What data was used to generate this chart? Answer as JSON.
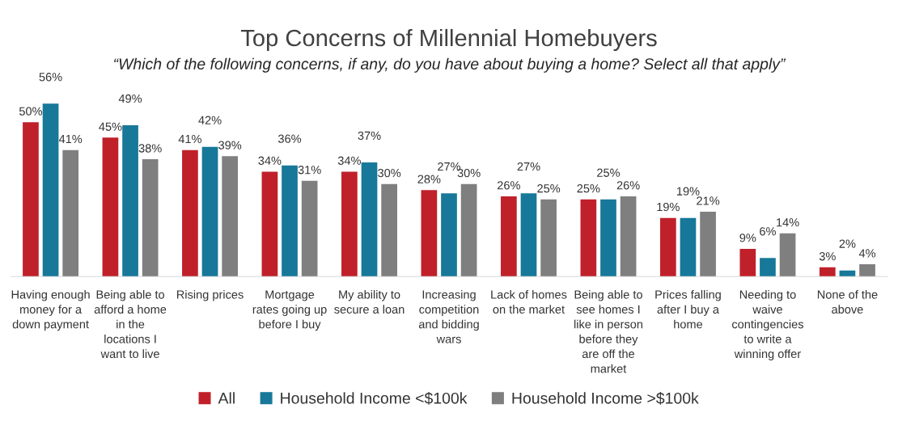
{
  "chart_data": {
    "type": "bar",
    "title": "Top Concerns of Millennial Homebuyers",
    "subtitle": "“Which of the following concerns, if any, do you have about buying a home? Select all that apply”",
    "categories": [
      "Having enough\nmoney for a\ndown payment",
      "Being able to\nafford a home\nin the\nlocations I\nwant to live",
      "Rising prices",
      "Mortgage\nrates going up\nbefore I buy",
      "My ability to\nsecure a loan",
      "Increasing\ncompetition\nand bidding\nwars",
      "Lack of homes\non the market",
      "Being able to\nsee homes I\nlike in person\nbefore they\nare off the\nmarket",
      "Prices falling\nafter I buy a\nhome",
      "Needing to\nwaive\ncontingencies\nto write a\nwinning offer",
      "None of the\nabove"
    ],
    "series": [
      {
        "name": "All",
        "color": "#c0202a",
        "values": [
          50,
          45,
          41,
          34,
          34,
          28,
          26,
          25,
          19,
          9,
          3
        ],
        "value_labels": [
          "50%",
          "45%",
          "41%",
          "34%",
          "34%",
          "28%",
          "26%",
          "25%",
          "19%",
          "9%",
          "3%"
        ]
      },
      {
        "name": "Household Income <$100k",
        "color": "#17789a",
        "values": [
          56,
          49,
          42,
          36,
          37,
          27,
          27,
          25,
          19,
          6,
          2
        ],
        "value_labels": [
          "56%",
          "49%",
          "42%",
          "36%",
          "37%",
          "27%",
          "27%",
          "25%",
          "19%",
          "6%",
          "2%"
        ]
      },
      {
        "name": "Household Income >$100k",
        "color": "#7f7f7f",
        "values": [
          41,
          38,
          39,
          31,
          30,
          30,
          25,
          26,
          21,
          14,
          4
        ],
        "value_labels": [
          "41%",
          "38%",
          "39%",
          "31%",
          "30%",
          "30%",
          "25%",
          "26%",
          "21%",
          "14%",
          "4%"
        ]
      }
    ],
    "legend": "bottom",
    "grid": false,
    "tick_labels": "x"
  }
}
